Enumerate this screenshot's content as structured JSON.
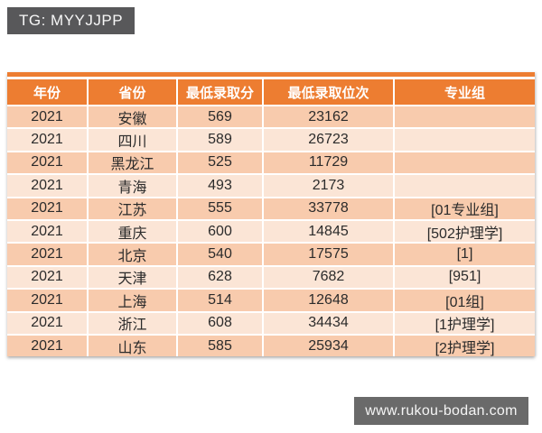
{
  "badge": {
    "text": "TG: MYYJJPP"
  },
  "watermark": {
    "text": "www.rukou-bodan.com"
  },
  "colors": {
    "header_orange": "#ed7d31",
    "row_band_dark": "#f8cbad",
    "row_band_light": "#fbe5d6",
    "badge_gray": "#58585a",
    "watermark_gray": "#6a6a6a",
    "header_text": "#ffffff",
    "cell_text": "#2b2b2b"
  },
  "chart_data": {
    "type": "table",
    "title": "",
    "columns": [
      "年份",
      "省份",
      "最低录取分",
      "最低录取位次",
      "专业组"
    ],
    "rows": [
      [
        "2021",
        "安徽",
        "569",
        "23162",
        ""
      ],
      [
        "2021",
        "四川",
        "589",
        "26723",
        ""
      ],
      [
        "2021",
        "黑龙江",
        "525",
        "11729",
        ""
      ],
      [
        "2021",
        "青海",
        "493",
        "2173",
        ""
      ],
      [
        "2021",
        "江苏",
        "555",
        "33778",
        "[01专业组]"
      ],
      [
        "2021",
        "重庆",
        "600",
        "14845",
        "[502护理学]"
      ],
      [
        "2021",
        "北京",
        "540",
        "17575",
        "[1]"
      ],
      [
        "2021",
        "天津",
        "628",
        "7682",
        "[951]"
      ],
      [
        "2021",
        "上海",
        "514",
        "12648",
        "[01组]"
      ],
      [
        "2021",
        "浙江",
        "608",
        "34434",
        "[1护理学]"
      ],
      [
        "2021",
        "山东",
        "585",
        "25934",
        "[2护理学]"
      ]
    ],
    "layout": {
      "banded_rows": true,
      "header_fill": "orange",
      "column_alignment": "center"
    }
  }
}
